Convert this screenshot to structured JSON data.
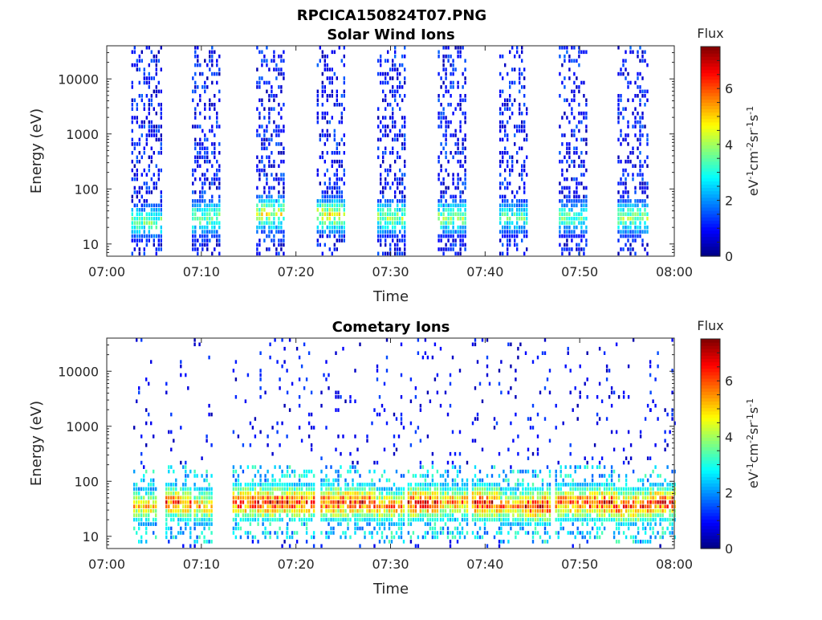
{
  "figure_title": "RPCICA150824T07.PNG",
  "chart_data": [
    {
      "type": "heatmap",
      "title": "Solar Wind Ions",
      "xlabel": "Time",
      "ylabel": "Energy (eV)",
      "x_ticks": [
        "07:00",
        "07:10",
        "07:20",
        "07:30",
        "07:40",
        "07:50",
        "08:00"
      ],
      "x_range_minutes": [
        0,
        60
      ],
      "y_scale": "log",
      "y_ticks": [
        "10",
        "100",
        "1000",
        "10000"
      ],
      "y_range": [
        6,
        40000
      ],
      "colorbar": {
        "label": "Flux",
        "units": "eV-1cm-2sr-1s-1",
        "ticks": [
          "0",
          "2",
          "4",
          "6"
        ],
        "range": [
          0,
          7.5
        ],
        "colormap": "jet"
      },
      "bursts": [
        {
          "start_min": 2.6,
          "end_min": 5.8,
          "peak_energy_eV": 25,
          "peak_flux": 4.0
        },
        {
          "start_min": 9.0,
          "end_min": 12.0,
          "peak_energy_eV": 30,
          "peak_flux": 4.3
        },
        {
          "start_min": 15.8,
          "end_min": 18.8,
          "peak_energy_eV": 35,
          "peak_flux": 5.0
        },
        {
          "start_min": 22.2,
          "end_min": 25.2,
          "peak_energy_eV": 33,
          "peak_flux": 5.2
        },
        {
          "start_min": 28.6,
          "end_min": 31.6,
          "peak_energy_eV": 30,
          "peak_flux": 4.3
        },
        {
          "start_min": 35.0,
          "end_min": 38.0,
          "peak_energy_eV": 30,
          "peak_flux": 4.4
        },
        {
          "start_min": 41.5,
          "end_min": 44.5,
          "peak_energy_eV": 30,
          "peak_flux": 3.8
        },
        {
          "start_min": 47.8,
          "end_min": 50.8,
          "peak_energy_eV": 30,
          "peak_flux": 4.0
        },
        {
          "start_min": 54.0,
          "end_min": 57.2,
          "peak_energy_eV": 30,
          "peak_flux": 4.3
        }
      ]
    },
    {
      "type": "heatmap",
      "title": "Cometary Ions",
      "xlabel": "Time",
      "ylabel": "Energy (eV)",
      "x_ticks": [
        "07:00",
        "07:10",
        "07:20",
        "07:30",
        "07:40",
        "07:50",
        "08:00"
      ],
      "x_range_minutes": [
        0,
        60
      ],
      "y_scale": "log",
      "y_ticks": [
        "10",
        "100",
        "1000",
        "10000"
      ],
      "y_range": [
        6,
        40000
      ],
      "colorbar": {
        "label": "Flux",
        "units": "eV-1cm-2sr-1s-1",
        "ticks": [
          "0",
          "2",
          "4",
          "6"
        ],
        "range": [
          0,
          7.5
        ],
        "colormap": "jet"
      },
      "bursts": [
        {
          "start_min": 2.8,
          "end_min": 5.2,
          "peak_energy_eV": 35,
          "peak_flux": 5.5
        },
        {
          "start_min": 6.2,
          "end_min": 8.8,
          "peak_energy_eV": 40,
          "peak_flux": 6.5
        },
        {
          "start_min": 9.2,
          "end_min": 11.2,
          "peak_energy_eV": 35,
          "peak_flux": 5.8
        },
        {
          "start_min": 13.3,
          "end_min": 15.6,
          "peak_energy_eV": 40,
          "peak_flux": 6.8
        },
        {
          "start_min": 15.9,
          "end_min": 19.0,
          "peak_energy_eV": 40,
          "peak_flux": 7.0
        },
        {
          "start_min": 19.0,
          "end_min": 22.0,
          "peak_energy_eV": 40,
          "peak_flux": 6.8
        },
        {
          "start_min": 22.6,
          "end_min": 25.2,
          "peak_energy_eV": 40,
          "peak_flux": 6.8
        },
        {
          "start_min": 25.4,
          "end_min": 28.4,
          "peak_energy_eV": 40,
          "peak_flux": 7.0
        },
        {
          "start_min": 28.5,
          "end_min": 31.5,
          "peak_energy_eV": 35,
          "peak_flux": 6.0
        },
        {
          "start_min": 31.8,
          "end_min": 35.0,
          "peak_energy_eV": 40,
          "peak_flux": 7.0
        },
        {
          "start_min": 35.2,
          "end_min": 38.2,
          "peak_energy_eV": 40,
          "peak_flux": 6.0
        },
        {
          "start_min": 38.6,
          "end_min": 41.5,
          "peak_energy_eV": 40,
          "peak_flux": 7.0
        },
        {
          "start_min": 41.6,
          "end_min": 44.0,
          "peak_energy_eV": 35,
          "peak_flux": 6.0
        },
        {
          "start_min": 44.2,
          "end_min": 47.0,
          "peak_energy_eV": 35,
          "peak_flux": 7.0
        },
        {
          "start_min": 47.4,
          "end_min": 50.8,
          "peak_energy_eV": 40,
          "peak_flux": 6.5
        },
        {
          "start_min": 51.0,
          "end_min": 53.8,
          "peak_energy_eV": 40,
          "peak_flux": 7.0
        },
        {
          "start_min": 53.8,
          "end_min": 57.4,
          "peak_energy_eV": 35,
          "peak_flux": 6.8
        },
        {
          "start_min": 57.4,
          "end_min": 60.0,
          "peak_energy_eV": 40,
          "peak_flux": 6.8
        }
      ]
    }
  ]
}
